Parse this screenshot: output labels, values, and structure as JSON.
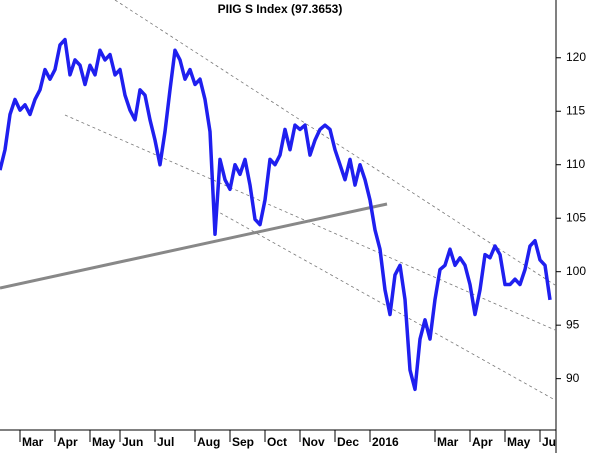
{
  "chart_data": {
    "type": "line",
    "title": "PIIG S Index (97.3653)",
    "categories": [
      null,
      null,
      null,
      null,
      "Mar",
      null,
      null,
      null,
      null,
      null,
      null,
      "Apr",
      null,
      null,
      null,
      null,
      null,
      null,
      "May",
      null,
      null,
      null,
      null,
      null,
      "Jun",
      null,
      null,
      null,
      null,
      null,
      null,
      "Jul",
      null,
      null,
      null,
      null,
      null,
      null,
      null,
      "Aug",
      null,
      null,
      null,
      null,
      null,
      null,
      "Sep",
      null,
      null,
      null,
      null,
      null,
      null,
      "Oct",
      null,
      null,
      null,
      null,
      null,
      null,
      "Nov",
      null,
      null,
      null,
      null,
      null,
      null,
      "Dec",
      null,
      null,
      null,
      null,
      null,
      null,
      "2016",
      null,
      null,
      null,
      null,
      null,
      null,
      null,
      null,
      null,
      null,
      null,
      null,
      "Mar",
      null,
      null,
      null,
      null,
      null,
      null,
      "Apr",
      null,
      null,
      null,
      null,
      null,
      null,
      "May",
      null,
      null,
      null,
      null,
      null,
      null,
      "Jun",
      null,
      null
    ],
    "values": [
      109.5,
      111.4,
      114.7,
      116.1,
      115.1,
      115.6,
      114.7,
      116.1,
      117.0,
      118.9,
      118.0,
      118.9,
      121.2,
      121.7,
      118.4,
      119.8,
      119.3,
      117.5,
      119.3,
      118.4,
      120.7,
      119.8,
      120.3,
      118.4,
      118.9,
      116.5,
      115.1,
      114.2,
      117.0,
      116.5,
      114.2,
      112.3,
      110.0,
      113.1,
      117.0,
      120.7,
      119.8,
      118.0,
      118.9,
      117.5,
      118.0,
      116.1,
      113.1,
      103.5,
      110.5,
      108.6,
      107.7,
      110.0,
      109.1,
      110.5,
      108.1,
      104.9,
      104.4,
      106.7,
      110.5,
      110.0,
      110.9,
      113.3,
      111.4,
      113.7,
      113.3,
      113.7,
      110.9,
      112.3,
      113.3,
      113.7,
      113.3,
      111.4,
      110.0,
      108.6,
      110.5,
      108.1,
      110.0,
      108.6,
      106.7,
      103.9,
      102.1,
      98.3,
      96.0,
      99.7,
      100.6,
      97.4,
      90.8,
      89.0,
      93.7,
      95.5,
      93.7,
      97.4,
      100.2,
      100.6,
      102.1,
      100.6,
      101.3,
      100.6,
      98.8,
      96.0,
      98.3,
      101.6,
      101.3,
      102.4,
      101.6,
      98.8,
      98.8,
      99.3,
      98.8,
      100.2,
      102.4,
      102.9,
      101.1,
      100.6,
      97.37
    ],
    "color": "#1f1fef",
    "ylim": [
      85.2,
      125.4
    ],
    "yticks": [
      90,
      95,
      100,
      105,
      110,
      115,
      120
    ],
    "grid": false
  }
}
